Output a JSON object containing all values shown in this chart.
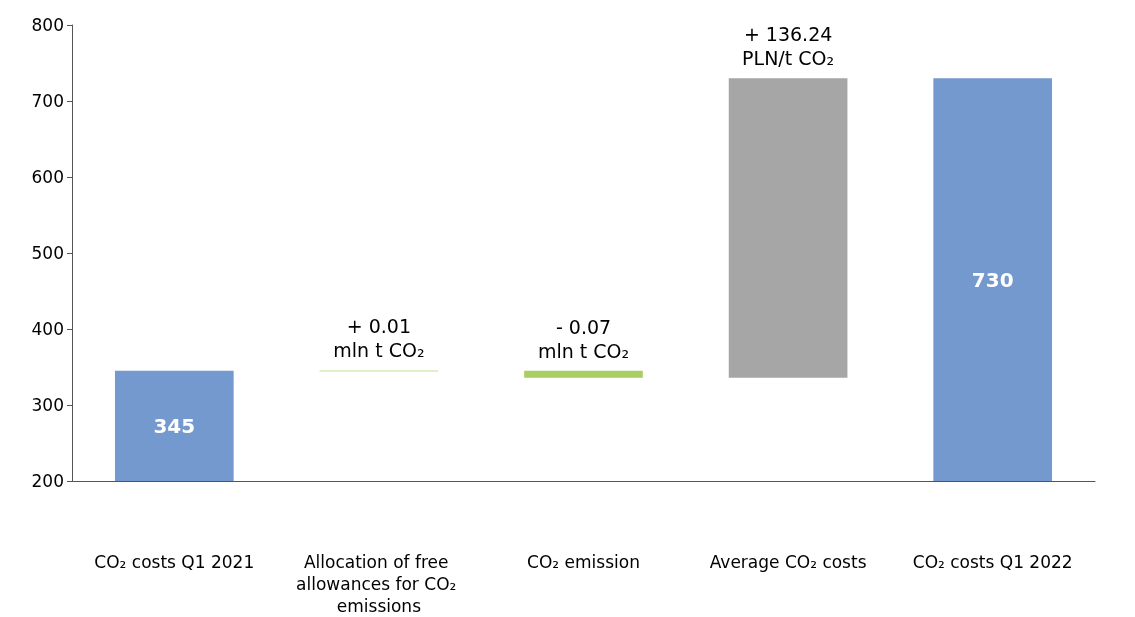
{
  "chart_data": {
    "type": "bar",
    "categories": [
      "CO₂ costs Q1 2021",
      "Allocation of free allowances for CO₂ emissions",
      "CO₂ emission",
      "Average CO₂ costs",
      "CO₂ costs Q1 2022"
    ],
    "base": [
      200,
      345,
      345,
      336,
      200
    ],
    "values": [
      145,
      0.5,
      -9,
      394,
      530
    ],
    "colors": [
      "#7399cf",
      "#c5e08f",
      "#a9cf64",
      "#a6a6a6",
      "#7399cf"
    ],
    "value_labels": [
      "345",
      null,
      null,
      null,
      "730"
    ],
    "ylim": [
      200,
      800
    ],
    "yticks": [
      200,
      300,
      400,
      500,
      600,
      700,
      800
    ],
    "annotations": [
      {
        "text": "+ 0.01\nmln t CO₂",
        "x": "Allocation of free allowances for CO₂ emissions",
        "y": 345.5
      },
      {
        "text": "- 0.07\nmln t CO₂",
        "x": "CO₂ emission",
        "y": 345
      },
      {
        "text": "+ 136.24\nPLN/t CO₂",
        "x": "Average CO₂ costs",
        "y": 730
      }
    ]
  }
}
